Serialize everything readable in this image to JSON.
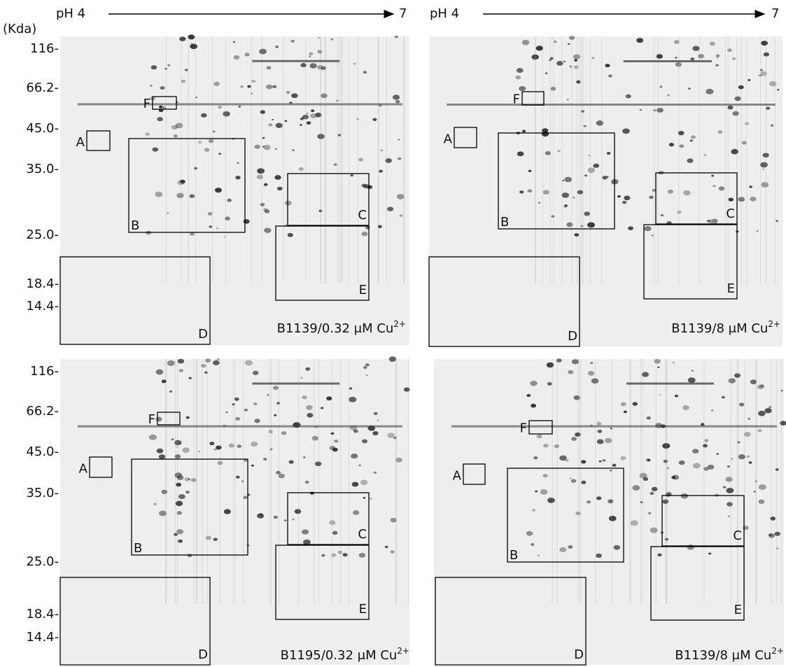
{
  "unit_label": "(Kda)",
  "ph_axes": [
    {
      "start": "pH 4",
      "end": "7"
    },
    {
      "start": "pH 4",
      "end": "7"
    }
  ],
  "mw_axes": [
    [
      "116-",
      "66.2-",
      "45.0-",
      "35.0-",
      "25.0-",
      "18.4-",
      "14.4-"
    ],
    [
      "116-",
      "66.2-",
      "45.0-",
      "35.0-",
      "25.0-",
      "18.4-",
      "14.4-"
    ]
  ],
  "panels": [
    {
      "regions": [
        "A",
        "B",
        "C",
        "D",
        "E",
        "F"
      ],
      "caption": {
        "text": "B1139/0.32 μM Cu",
        "superscript": "2+"
      }
    },
    {
      "regions": [
        "A",
        "B",
        "C",
        "D",
        "E",
        "F"
      ],
      "caption": {
        "text": "B1139/8 μM Cu",
        "superscript": "2+"
      }
    },
    {
      "regions": [
        "A",
        "B",
        "C",
        "D",
        "E",
        "F"
      ],
      "caption": {
        "text": "B1195/0.32 μM Cu",
        "superscript": "2+"
      }
    },
    {
      "regions": [
        "A",
        "B",
        "C",
        "D",
        "E",
        "F"
      ],
      "caption": {
        "text": "B1139/8 μM Cu",
        "superscript": "2+"
      }
    }
  ]
}
